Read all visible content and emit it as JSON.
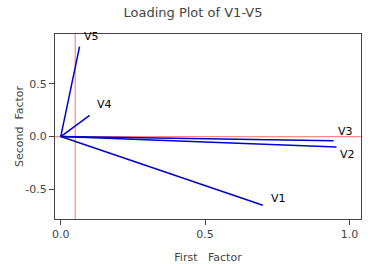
{
  "chart_data": {
    "type": "vector",
    "title": "Loading Plot of V1-V5",
    "xlabel": "First   Factor",
    "ylabel": "Second  Factor",
    "xlim": [
      -0.02,
      1.04
    ],
    "ylim": [
      -0.78,
      0.97
    ],
    "xticks": [
      {
        "value": 0.0,
        "label": "0.0"
      },
      0.5,
      {
        "value": 1.0,
        "label": "1.0"
      }
    ],
    "yticks": [
      -0.5,
      {
        "value": 0.0,
        "label": "0.0"
      },
      0.5
    ],
    "grid": false,
    "reference_lines": [
      {
        "y": 0.0,
        "color": "#ff8888"
      },
      {
        "x": 0.05,
        "color": "#ff8888"
      }
    ],
    "series": [
      {
        "name": "V1",
        "color": "#0000cc",
        "x": [
          0,
          0.7
        ],
        "y": [
          0,
          -0.65
        ],
        "label_x": 0.72,
        "label_y": -0.67
      },
      {
        "name": "V2",
        "color": "#0000cc",
        "x": [
          0,
          0.955
        ],
        "y": [
          0,
          -0.1
        ],
        "label_x": 0.96,
        "label_y": -0.09
      },
      {
        "name": "V3",
        "color": "#0000cc",
        "x": [
          0,
          0.945
        ],
        "y": [
          0,
          -0.04
        ],
        "label_x": 0.955,
        "label_y": -0.03
      },
      {
        "name": "V4",
        "color": "#0000cc",
        "x": [
          0,
          0.1
        ],
        "y": [
          0,
          0.2
        ],
        "label_x": 0.12,
        "label_y": 0.22
      },
      {
        "name": "V5",
        "color": "#0000cc",
        "x": [
          0,
          0.065
        ],
        "y": [
          0,
          0.85
        ],
        "label_x": 0.075,
        "label_y": 0.87
      }
    ]
  }
}
